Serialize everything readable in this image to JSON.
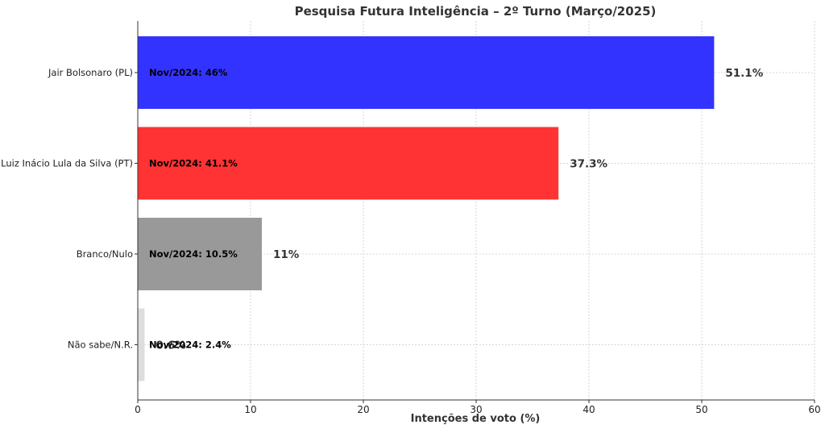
{
  "chart_data": {
    "type": "bar",
    "orientation": "horizontal",
    "title": "Pesquisa Futura Inteligência – 2º Turno (Março/2025)",
    "xlabel": "Intenções de voto (%)",
    "ylabel": "",
    "xlim": [
      0,
      60
    ],
    "xticks": [
      0,
      10,
      20,
      30,
      40,
      50,
      60
    ],
    "grid": true,
    "categories": [
      "Jair Bolsonaro (PL)",
      "Luiz Inácio Lula da Silva (PT)",
      "Branco/Nulo",
      "Não sabe/N.R."
    ],
    "values": [
      51.1,
      37.3,
      11,
      0.6
    ],
    "value_labels": [
      "51.1%",
      "37.3%",
      "11%",
      "0.6%"
    ],
    "bar_colors": [
      "#3333ff",
      "#ff3333",
      "#999999",
      "#dddddd"
    ],
    "previous_labels": [
      "Nov/2024: 46%",
      "Nov/2024: 41.1%",
      "Nov/2024: 10.5%",
      "Nov/2024: 2.4%"
    ]
  }
}
